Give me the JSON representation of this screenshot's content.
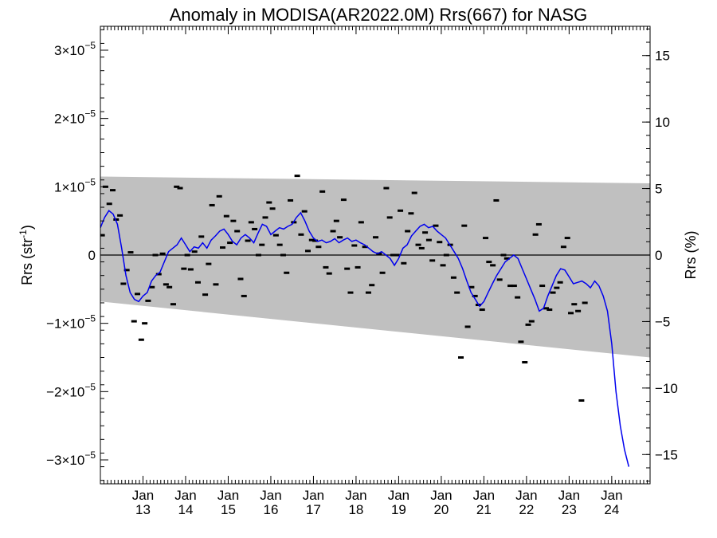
{
  "chart_data": {
    "type": "scatter",
    "title": "Anomaly in MODISA(AR2022.0M) Rrs(667) for NASG",
    "ylabel_left": "Rrs (str",
    "ylabel_left_sup": "-1",
    "ylabel_left_close": ")",
    "ylabel_right": "Rrs (%)",
    "x_range": [
      2012.0,
      2024.9
    ],
    "y_left_range": [
      -3.35e-05,
      3.35e-05
    ],
    "y_right_range": [
      -17.2,
      17.2
    ],
    "y_left_ticks": [
      {
        "value": 3e-05,
        "label": "3×10",
        "exp": "−5"
      },
      {
        "value": 2e-05,
        "label": "2×10",
        "exp": "−5"
      },
      {
        "value": 1e-05,
        "label": "1×10",
        "exp": "−5"
      },
      {
        "value": 0,
        "label": "0",
        "exp": ""
      },
      {
        "value": -1e-05,
        "label": "−1×10",
        "exp": "−5"
      },
      {
        "value": -2e-05,
        "label": "−2×10",
        "exp": "−5"
      },
      {
        "value": -3e-05,
        "label": "−3×10",
        "exp": "−5"
      }
    ],
    "y_right_ticks": [
      {
        "value": 15,
        "label": "15"
      },
      {
        "value": 10,
        "label": "10"
      },
      {
        "value": 5,
        "label": "5"
      },
      {
        "value": 0,
        "label": "0"
      },
      {
        "value": -5,
        "label": "−5"
      },
      {
        "value": -10,
        "label": "−10"
      },
      {
        "value": -15,
        "label": "−15"
      }
    ],
    "x_ticks": [
      {
        "value": 2013,
        "month": "Jan",
        "year": "13"
      },
      {
        "value": 2014,
        "month": "Jan",
        "year": "14"
      },
      {
        "value": 2015,
        "month": "Jan",
        "year": "15"
      },
      {
        "value": 2016,
        "month": "Jan",
        "year": "16"
      },
      {
        "value": 2017,
        "month": "Jan",
        "year": "17"
      },
      {
        "value": 2018,
        "month": "Jan",
        "year": "18"
      },
      {
        "value": 2019,
        "month": "Jan",
        "year": "19"
      },
      {
        "value": 2020,
        "month": "Jan",
        "year": "20"
      },
      {
        "value": 2021,
        "month": "Jan",
        "year": "21"
      },
      {
        "value": 2022,
        "month": "Jan",
        "year": "22"
      },
      {
        "value": 2023,
        "month": "Jan",
        "year": "23"
      },
      {
        "value": 2024,
        "month": "Jan",
        "year": "24"
      }
    ],
    "band": {
      "color": "#c0c0c0",
      "upper": [
        [
          2012.0,
          1.15e-05
        ],
        [
          2024.9,
          1.05e-05
        ]
      ],
      "lower": [
        [
          2012.0,
          -6.8e-06
        ],
        [
          2024.9,
          -1.5e-05
        ]
      ]
    },
    "zero_line": true,
    "grid": false,
    "monthly_points": [
      [
        2012.04,
        2.9e-06
      ],
      [
        2012.12,
        1e-05
      ],
      [
        2012.21,
        7.5e-06
      ],
      [
        2012.29,
        9.5e-06
      ],
      [
        2012.37,
        5.2e-06
      ],
      [
        2012.46,
        5.8e-06
      ],
      [
        2012.54,
        -4.2e-06
      ],
      [
        2012.62,
        -2.2e-06
      ],
      [
        2012.71,
        4e-07
      ],
      [
        2012.79,
        -9.7e-06
      ],
      [
        2012.87,
        -5.7e-06
      ],
      [
        2012.96,
        -1.24e-05
      ],
      [
        2013.04,
        -1e-05
      ],
      [
        2013.12,
        -6.7e-06
      ],
      [
        2013.21,
        -4.7e-06
      ],
      [
        2013.29,
        0.0
      ],
      [
        2013.37,
        -2.8e-06
      ],
      [
        2013.46,
        2e-07
      ],
      [
        2013.54,
        -4.3e-06
      ],
      [
        2013.62,
        -4.7e-06
      ],
      [
        2013.71,
        -7.2e-06
      ],
      [
        2013.79,
        1e-05
      ],
      [
        2013.87,
        9.8e-06
      ],
      [
        2013.96,
        -2e-06
      ],
      [
        2014.04,
        0.0
      ],
      [
        2014.12,
        -2.1e-06
      ],
      [
        2014.21,
        5e-07
      ],
      [
        2014.29,
        -4e-06
      ],
      [
        2014.37,
        2.7e-06
      ],
      [
        2014.46,
        -5.8e-06
      ],
      [
        2014.54,
        -1.3e-06
      ],
      [
        2014.62,
        7.3e-06
      ],
      [
        2014.71,
        -4.3e-06
      ],
      [
        2014.79,
        8.6e-06
      ],
      [
        2014.87,
        1.1e-06
      ],
      [
        2014.96,
        5.7e-06
      ],
      [
        2015.04,
        1.8e-06
      ],
      [
        2015.12,
        5e-06
      ],
      [
        2015.21,
        3.5e-06
      ],
      [
        2015.29,
        -3.5e-06
      ],
      [
        2015.37,
        -6e-06
      ],
      [
        2015.46,
        2.1e-06
      ],
      [
        2015.54,
        4.8e-06
      ],
      [
        2015.62,
        3.8e-06
      ],
      [
        2015.71,
        0.0
      ],
      [
        2015.79,
        1.5e-06
      ],
      [
        2015.87,
        5.5e-06
      ],
      [
        2015.96,
        7.7e-06
      ],
      [
        2016.04,
        6.8e-06
      ],
      [
        2016.12,
        2.9e-06
      ],
      [
        2016.21,
        1.5e-06
      ],
      [
        2016.29,
        0.0
      ],
      [
        2016.37,
        -2.6e-06
      ],
      [
        2016.46,
        8e-06
      ],
      [
        2016.54,
        4.8e-06
      ],
      [
        2016.62,
        1.16e-05
      ],
      [
        2016.71,
        3e-06
      ],
      [
        2016.79,
        6.4e-06
      ],
      [
        2016.87,
        6e-07
      ],
      [
        2016.96,
        2.2e-06
      ],
      [
        2017.04,
        2.1e-06
      ],
      [
        2017.12,
        1.2e-06
      ],
      [
        2017.21,
        9.3e-06
      ],
      [
        2017.29,
        -1.8e-06
      ],
      [
        2017.37,
        -2.7e-06
      ],
      [
        2017.46,
        3.5e-06
      ],
      [
        2017.54,
        5e-06
      ],
      [
        2017.62,
        2.6e-06
      ],
      [
        2017.71,
        8.1e-06
      ],
      [
        2017.79,
        -2e-06
      ],
      [
        2017.87,
        -5.5e-06
      ],
      [
        2017.96,
        1.4e-06
      ],
      [
        2018.04,
        -1.8e-06
      ],
      [
        2018.12,
        4.8e-06
      ],
      [
        2018.21,
        1.2e-06
      ],
      [
        2018.29,
        -5.5e-06
      ],
      [
        2018.37,
        -4.4e-06
      ],
      [
        2018.46,
        2.6e-06
      ],
      [
        2018.54,
        2e-07
      ],
      [
        2018.62,
        -2.6e-06
      ],
      [
        2018.71,
        9.8e-06
      ],
      [
        2018.79,
        5.5e-06
      ],
      [
        2018.87,
        0.0
      ],
      [
        2018.96,
        0.0
      ],
      [
        2019.04,
        6.5e-06
      ],
      [
        2019.12,
        -1.2e-06
      ],
      [
        2019.21,
        3.5e-06
      ],
      [
        2019.29,
        6.1e-06
      ],
      [
        2019.37,
        9.1e-06
      ],
      [
        2019.46,
        1.5e-06
      ],
      [
        2019.54,
        1e-06
      ],
      [
        2019.62,
        3.3e-06
      ],
      [
        2019.71,
        2.2e-06
      ],
      [
        2019.79,
        -8e-07
      ],
      [
        2019.87,
        4.3e-06
      ],
      [
        2019.96,
        1.9e-06
      ],
      [
        2020.04,
        -1.5e-06
      ],
      [
        2020.12,
        0.0
      ],
      [
        2020.21,
        1.5e-06
      ],
      [
        2020.29,
        -3.3e-06
      ],
      [
        2020.37,
        -5.5e-06
      ],
      [
        2020.46,
        -1.5e-05
      ],
      [
        2020.54,
        4.3e-06
      ],
      [
        2020.62,
        -1.05e-05
      ],
      [
        2020.71,
        -4.7e-06
      ],
      [
        2020.79,
        -6e-06
      ],
      [
        2020.87,
        -7.3e-06
      ],
      [
        2020.96,
        -8e-06
      ],
      [
        2021.04,
        2.5e-06
      ],
      [
        2021.12,
        -1e-06
      ],
      [
        2021.21,
        -1.5e-06
      ],
      [
        2021.29,
        8e-06
      ],
      [
        2021.37,
        -3.6e-06
      ],
      [
        2021.46,
        0.0
      ],
      [
        2021.54,
        -5e-07
      ],
      [
        2021.62,
        -4.5e-06
      ],
      [
        2021.71,
        -4.5e-06
      ],
      [
        2021.79,
        -6.2e-06
      ],
      [
        2021.87,
        -1.27e-05
      ],
      [
        2021.96,
        -1.57e-05
      ],
      [
        2022.04,
        -1.02e-05
      ],
      [
        2022.12,
        -9.7e-06
      ],
      [
        2022.21,
        3e-06
      ],
      [
        2022.29,
        4.5e-06
      ],
      [
        2022.37,
        -4.5e-06
      ],
      [
        2022.46,
        -7.8e-06
      ],
      [
        2022.54,
        -8e-06
      ],
      [
        2022.62,
        -5.5e-06
      ],
      [
        2022.71,
        -4.8e-06
      ],
      [
        2022.79,
        -4e-06
      ],
      [
        2022.87,
        1.2e-06
      ],
      [
        2022.96,
        2.5e-06
      ],
      [
        2023.04,
        -8.5e-06
      ],
      [
        2023.12,
        -7.2e-06
      ],
      [
        2023.21,
        -8.2e-06
      ],
      [
        2023.29,
        -2.13e-05
      ],
      [
        2023.37,
        -7e-06
      ]
    ],
    "anomaly_series": {
      "name": "",
      "color": "#0000ee",
      "points": [
        [
          2012.0,
          4e-06
        ],
        [
          2012.1,
          5.5e-06
        ],
        [
          2012.2,
          6.5e-06
        ],
        [
          2012.3,
          6e-06
        ],
        [
          2012.4,
          4.5e-06
        ],
        [
          2012.5,
          1e-06
        ],
        [
          2012.6,
          -3e-06
        ],
        [
          2012.7,
          -5.5e-06
        ],
        [
          2012.8,
          -6.5e-06
        ],
        [
          2012.9,
          -6.8e-06
        ],
        [
          2013.0,
          -6e-06
        ],
        [
          2013.1,
          -5.5e-06
        ],
        [
          2013.2,
          -3.8e-06
        ],
        [
          2013.3,
          -3e-06
        ],
        [
          2013.4,
          -2.5e-06
        ],
        [
          2013.5,
          -1e-06
        ],
        [
          2013.6,
          5e-07
        ],
        [
          2013.7,
          1e-06
        ],
        [
          2013.8,
          1.5e-06
        ],
        [
          2013.9,
          2.5e-06
        ],
        [
          2014.0,
          1.5e-06
        ],
        [
          2014.1,
          5e-07
        ],
        [
          2014.2,
          1.2e-06
        ],
        [
          2014.3,
          1e-06
        ],
        [
          2014.4,
          1.8e-06
        ],
        [
          2014.5,
          1e-06
        ],
        [
          2014.6,
          2.2e-06
        ],
        [
          2014.7,
          2.8e-06
        ],
        [
          2014.8,
          3.5e-06
        ],
        [
          2014.9,
          3.8e-06
        ],
        [
          2015.0,
          3e-06
        ],
        [
          2015.1,
          2e-06
        ],
        [
          2015.2,
          1.5e-06
        ],
        [
          2015.3,
          2.5e-06
        ],
        [
          2015.4,
          3e-06
        ],
        [
          2015.5,
          2.5e-06
        ],
        [
          2015.6,
          1.8e-06
        ],
        [
          2015.7,
          3.2e-06
        ],
        [
          2015.8,
          4.5e-06
        ],
        [
          2015.9,
          4.2e-06
        ],
        [
          2016.0,
          3e-06
        ],
        [
          2016.1,
          3.5e-06
        ],
        [
          2016.2,
          4e-06
        ],
        [
          2016.3,
          3.8e-06
        ],
        [
          2016.4,
          4.2e-06
        ],
        [
          2016.5,
          4.5e-06
        ],
        [
          2016.6,
          5.5e-06
        ],
        [
          2016.7,
          6.2e-06
        ],
        [
          2016.8,
          5e-06
        ],
        [
          2016.9,
          3.5e-06
        ],
        [
          2017.0,
          2.5e-06
        ],
        [
          2017.1,
          2e-06
        ],
        [
          2017.2,
          2.2e-06
        ],
        [
          2017.3,
          1.8e-06
        ],
        [
          2017.4,
          2e-06
        ],
        [
          2017.5,
          2.4e-06
        ],
        [
          2017.6,
          1.8e-06
        ],
        [
          2017.7,
          2.2e-06
        ],
        [
          2017.8,
          2.5e-06
        ],
        [
          2017.9,
          2e-06
        ],
        [
          2018.0,
          2.2e-06
        ],
        [
          2018.1,
          1.8e-06
        ],
        [
          2018.2,
          1.5e-06
        ],
        [
          2018.3,
          1e-06
        ],
        [
          2018.4,
          5e-07
        ],
        [
          2018.5,
          2e-07
        ],
        [
          2018.6,
          5e-07
        ],
        [
          2018.7,
          0.0
        ],
        [
          2018.8,
          -5e-07
        ],
        [
          2018.9,
          -1.5e-06
        ],
        [
          2019.0,
          -5e-07
        ],
        [
          2019.1,
          1e-06
        ],
        [
          2019.2,
          1.5e-06
        ],
        [
          2019.3,
          2.8e-06
        ],
        [
          2019.4,
          3.5e-06
        ],
        [
          2019.5,
          4.2e-06
        ],
        [
          2019.6,
          4.5e-06
        ],
        [
          2019.7,
          4e-06
        ],
        [
          2019.8,
          4.2e-06
        ],
        [
          2019.9,
          3.5e-06
        ],
        [
          2020.0,
          3e-06
        ],
        [
          2020.1,
          2.5e-06
        ],
        [
          2020.2,
          1.5e-06
        ],
        [
          2020.3,
          5e-07
        ],
        [
          2020.4,
          -5e-07
        ],
        [
          2020.5,
          -2e-06
        ],
        [
          2020.6,
          -3.8e-06
        ],
        [
          2020.7,
          -5.5e-06
        ],
        [
          2020.8,
          -6.5e-06
        ],
        [
          2020.9,
          -7.5e-06
        ],
        [
          2021.0,
          -6.8e-06
        ],
        [
          2021.1,
          -5.5e-06
        ],
        [
          2021.2,
          -4.2e-06
        ],
        [
          2021.3,
          -3e-06
        ],
        [
          2021.4,
          -2e-06
        ],
        [
          2021.5,
          -1e-06
        ],
        [
          2021.6,
          -5e-07
        ],
        [
          2021.7,
          0.0
        ],
        [
          2021.8,
          -5e-07
        ],
        [
          2021.9,
          -2e-06
        ],
        [
          2022.0,
          -3.5e-06
        ],
        [
          2022.1,
          -5e-06
        ],
        [
          2022.2,
          -6.5e-06
        ],
        [
          2022.3,
          -8.2e-06
        ],
        [
          2022.4,
          -7.8e-06
        ],
        [
          2022.5,
          -6e-06
        ],
        [
          2022.6,
          -4.5e-06
        ],
        [
          2022.7,
          -3e-06
        ],
        [
          2022.8,
          -2e-06
        ],
        [
          2022.9,
          -2.2e-06
        ],
        [
          2023.0,
          -3.2e-06
        ],
        [
          2023.1,
          -4.2e-06
        ],
        [
          2023.2,
          -4e-06
        ],
        [
          2023.3,
          -3.8e-06
        ],
        [
          2023.4,
          -4.2e-06
        ],
        [
          2023.5,
          -4.8e-06
        ],
        [
          2023.6,
          -3.8e-06
        ],
        [
          2023.7,
          -4.5e-06
        ],
        [
          2023.8,
          -6e-06
        ],
        [
          2023.9,
          -8.2e-06
        ],
        [
          2024.0,
          -1.3e-05
        ],
        [
          2024.1,
          -2e-05
        ],
        [
          2024.2,
          -2.5e-05
        ],
        [
          2024.3,
          -2.85e-05
        ],
        [
          2024.4,
          -3.1e-05
        ]
      ]
    }
  }
}
